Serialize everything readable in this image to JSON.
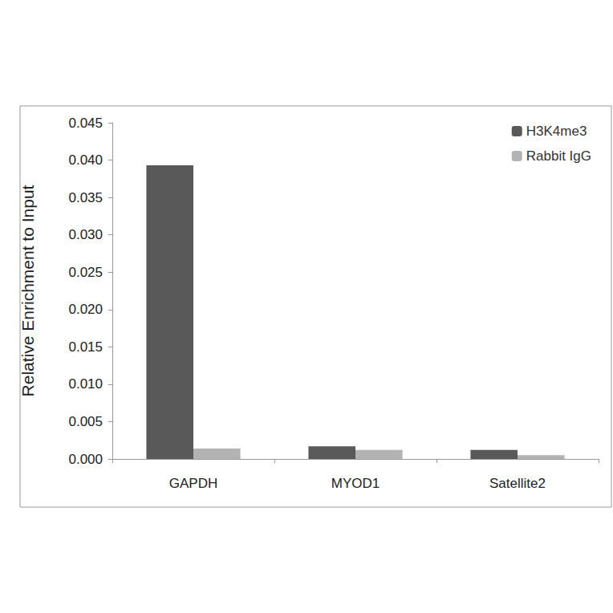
{
  "chart_data": {
    "type": "bar",
    "y_label": "Relative Enrichment to Input",
    "categories": [
      "GAPDH",
      "MYOD1",
      "Satellite2"
    ],
    "series": [
      {
        "name": "H3K4me3",
        "color": "#595959",
        "values": [
          0.0393,
          0.0017,
          0.0012
        ]
      },
      {
        "name": "Rabbit IgG",
        "color": "#b3b3b3",
        "values": [
          0.0014,
          0.0012,
          0.0005
        ]
      }
    ],
    "ylim": [
      0,
      0.045
    ],
    "yticks": [
      {
        "value": 0,
        "label": "0.000"
      },
      {
        "value": 0.005,
        "label": "0.005"
      },
      {
        "value": 0.01,
        "label": "0.010"
      },
      {
        "value": 0.015,
        "label": "0.015"
      },
      {
        "value": 0.02,
        "label": "0.020"
      },
      {
        "value": 0.025,
        "label": "0.025"
      },
      {
        "value": 0.03,
        "label": "0.030"
      },
      {
        "value": 0.035,
        "label": "0.035"
      },
      {
        "value": 0.04,
        "label": "0.040"
      },
      {
        "value": 0.045,
        "label": "0.045"
      }
    ],
    "grid": false,
    "legend": "top-right"
  }
}
